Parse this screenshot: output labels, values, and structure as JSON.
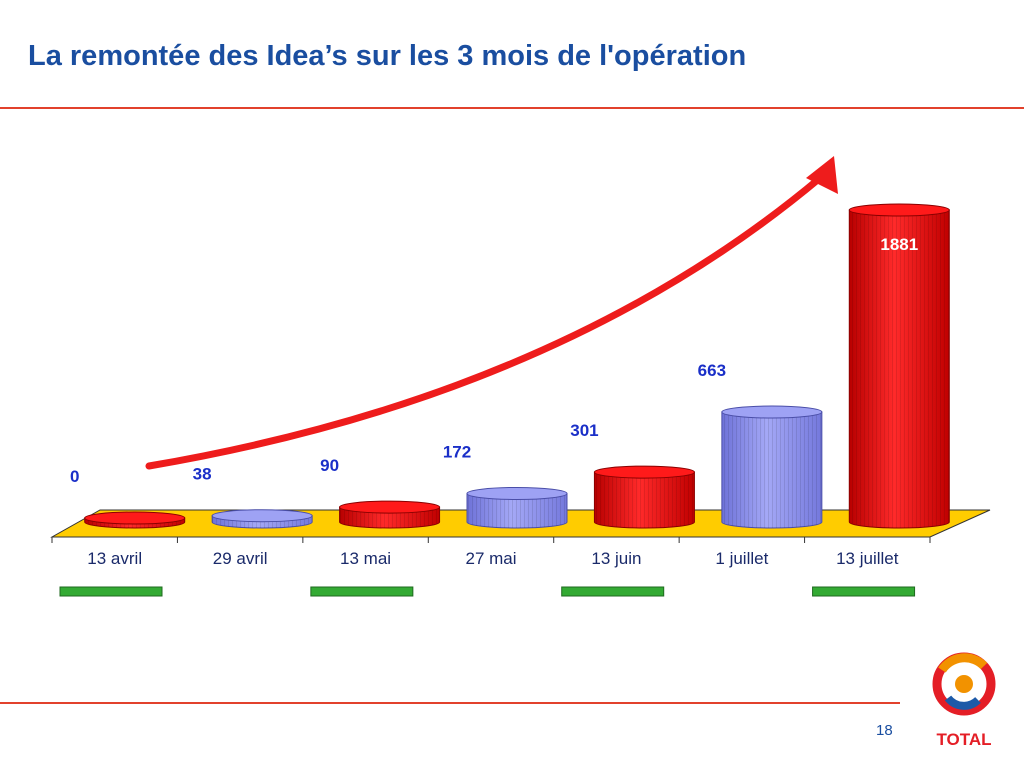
{
  "slide": {
    "title": "La remontée des Idea’s sur les 3 mois de l'opération",
    "page_number": "18",
    "logo_text": "TOTAL"
  },
  "colors": {
    "title": "#1a4ea0",
    "rule": "#e2412c",
    "bar_red": "#ff1a1a",
    "bar_blue": "#8f93ee",
    "floor": "#ffcc00",
    "arrow": "#ee1c1c",
    "marker_green": "#33aa33",
    "value_label_blue": "#1a2fc8",
    "value_label_white": "#ffffff"
  },
  "chart_data": {
    "type": "bar",
    "style": "3d-cylinder",
    "categories": [
      "13 avril",
      "29 avril",
      "13 mai",
      "27 mai",
      "13 juin",
      "1 juillet",
      "13 juillet"
    ],
    "values": [
      0,
      38,
      90,
      172,
      301,
      663,
      1881
    ],
    "bar_colors": [
      "red",
      "blue",
      "red",
      "blue",
      "red",
      "blue",
      "red"
    ],
    "title": "",
    "xlabel": "",
    "ylabel": "",
    "ylim": [
      0,
      1881
    ],
    "grid": false,
    "legend": "none",
    "annotations": [
      "upward red arrow from first to last category"
    ],
    "green_markers_under": [
      "13 avril",
      "13 mai",
      "13 juin",
      "13 juillet"
    ]
  }
}
